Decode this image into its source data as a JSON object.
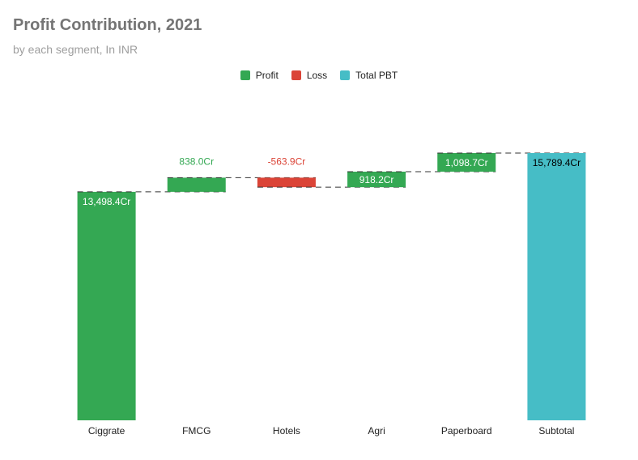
{
  "chart_data": {
    "type": "waterfall",
    "title": "Profit Contribution, 2021",
    "subtitle": "by each segment, In INR",
    "unit_suffix": "Cr",
    "legend": {
      "position": "top-center",
      "items": [
        {
          "label": "Profit",
          "color": "#34a853"
        },
        {
          "label": "Loss",
          "color": "#db4437"
        },
        {
          "label": "Total PBT",
          "color": "#46bdc6"
        }
      ]
    },
    "categories": [
      "Ciggrate",
      "FMCG",
      "Hotels",
      "Agri",
      "Paperboard",
      "Subtotal"
    ],
    "values": [
      13498.4,
      838.0,
      -563.9,
      918.2,
      1098.7,
      15789.4
    ],
    "kinds": [
      "profit",
      "profit",
      "loss",
      "profit",
      "profit",
      "total"
    ],
    "labels": [
      "13,498.4Cr",
      "838.0Cr",
      "-563.9Cr",
      "918.2Cr",
      "1,098.7Cr",
      "15,789.4Cr"
    ],
    "colors": {
      "profit": "#34a853",
      "loss": "#db4437",
      "total": "#46bdc6"
    },
    "ylim": [
      0,
      15789.4
    ],
    "grid": false,
    "connectors": "dashed"
  }
}
